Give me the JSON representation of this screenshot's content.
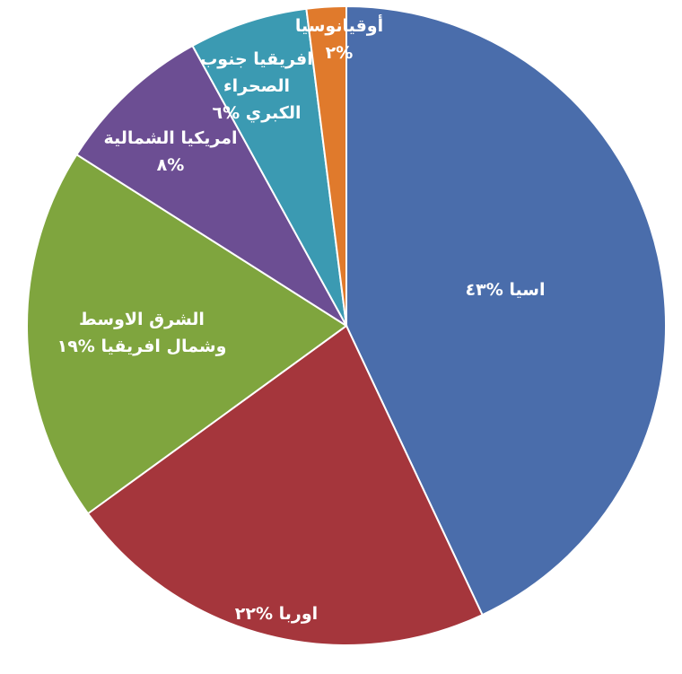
{
  "chart_data": {
    "type": "pie",
    "title": "",
    "start_angle_deg": 0,
    "direction": "clockwise",
    "slices": [
      {
        "name": "اسيا",
        "value": 43,
        "pct_label": "%٤٣",
        "color": "#4A6DAB",
        "label_lines": [
          "اسيا %٤٣"
        ]
      },
      {
        "name": "اوربا",
        "value": 22,
        "pct_label": "%٢٢",
        "color": "#A5363C",
        "label_lines": [
          "اوربا %٢٢"
        ]
      },
      {
        "name": "الشرق الاوسط وشمال افريقيا",
        "value": 19,
        "pct_label": "%١٩",
        "color": "#7FA53E",
        "label_lines": [
          "الشرق الاوسط",
          "وشمال افريقيا %١٩"
        ]
      },
      {
        "name": "امريكيا الشمالية",
        "value": 8,
        "pct_label": "%٨",
        "color": "#6C4E93",
        "label_lines": [
          "امريكيا الشمالية",
          "%٨"
        ]
      },
      {
        "name": "افريقيا جنوب الصحراء الكبري",
        "value": 6,
        "pct_label": "%٦",
        "color": "#3B9AB2",
        "label_lines": [
          "افريقيا جنوب",
          "الصحراء",
          "الكبري %٦"
        ]
      },
      {
        "name": "أوقيانوسيا",
        "value": 2,
        "pct_label": "%٢",
        "color": "#E07A2C",
        "label_lines": [
          "أوقيانوسيا",
          "%٢"
        ]
      }
    ]
  }
}
